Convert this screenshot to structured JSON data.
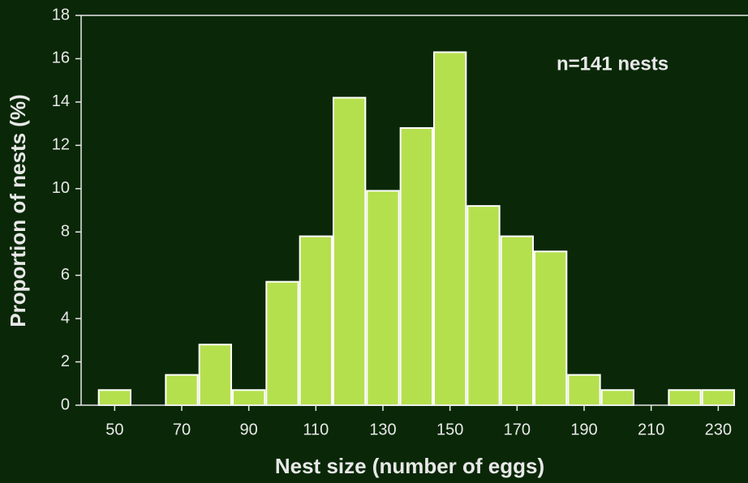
{
  "chart_data": {
    "type": "histogram",
    "xlabel": "Nest size (number of eggs)",
    "ylabel": "Proportion of nests (%)",
    "annotation": "n=141 nests",
    "bins": [
      45,
      55,
      65,
      75,
      85,
      95,
      105,
      115,
      125,
      135,
      145,
      155,
      165,
      175,
      185,
      195,
      205,
      215,
      225,
      235
    ],
    "values": [
      0.7,
      0,
      1.4,
      2.8,
      0.7,
      5.7,
      7.8,
      14.2,
      9.9,
      12.8,
      16.3,
      9.2,
      7.8,
      7.1,
      1.4,
      0.7,
      0,
      0.7,
      0.7
    ],
    "color": "#b5e04e",
    "xlim": [
      40,
      235
    ],
    "xticks": [
      50,
      70,
      90,
      110,
      130,
      150,
      170,
      190,
      210,
      230
    ],
    "ylim": [
      0,
      18
    ],
    "yticks": [
      0,
      2,
      4,
      6,
      8,
      10,
      12,
      14,
      16,
      18
    ]
  }
}
